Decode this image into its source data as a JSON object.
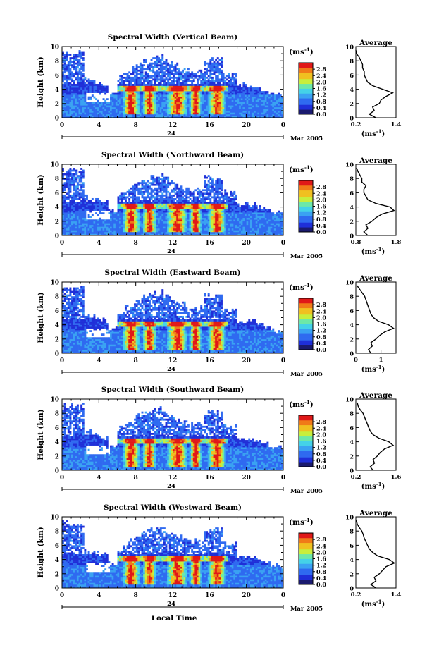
{
  "figure": {
    "xlabel": "Local Time",
    "date_label": "Mar 2005",
    "day_label": "24",
    "ylabel": "Height (km)",
    "cbar_unit": "(ms",
    "cbar_unit_sup": "-1",
    "cbar_unit_tail": ")",
    "avg_title": "Average",
    "colormap": [
      "#1a1a6e",
      "#1f2fd8",
      "#2f6af0",
      "#3aa2f2",
      "#44d2e8",
      "#6de8a8",
      "#c8ee3c",
      "#f0c020",
      "#f07a18",
      "#e01818"
    ]
  },
  "chart_data": [
    {
      "type": "heatmap",
      "title": "Spectral Width (Vertical Beam)",
      "ylabel": "Height (km)",
      "ylim": [
        0,
        10
      ],
      "yticks": [
        "0",
        "2",
        "4",
        "6",
        "8",
        "10"
      ],
      "xlim": [
        0,
        24
      ],
      "xticks": [
        "0",
        "4",
        "8",
        "12",
        "16",
        "20",
        "0"
      ],
      "colorbar": {
        "ticks": [
          "0.0",
          "0.4",
          "0.8",
          "1.2",
          "1.6",
          "2.0",
          "2.4",
          "2.8"
        ],
        "range": [
          0,
          3.2
        ]
      },
      "average": {
        "title": "Average",
        "xticks": [
          "0.2",
          "1.4"
        ],
        "xlim": [
          0.2,
          1.4
        ],
        "ylim": [
          0,
          10
        ],
        "yticks": [
          "0",
          "2",
          "4",
          "6",
          "8",
          "10"
        ],
        "profile": [
          [
            0.8,
            0.0
          ],
          [
            0.6,
            0.5
          ],
          [
            0.75,
            1.0
          ],
          [
            0.7,
            1.5
          ],
          [
            0.9,
            2.0
          ],
          [
            0.95,
            2.5
          ],
          [
            1.1,
            3.0
          ],
          [
            1.3,
            3.5
          ],
          [
            1.0,
            4.0
          ],
          [
            0.7,
            4.5
          ],
          [
            0.55,
            5.0
          ],
          [
            0.5,
            5.5
          ],
          [
            0.45,
            6.0
          ],
          [
            0.45,
            6.5
          ],
          [
            0.4,
            7.0
          ],
          [
            0.4,
            7.5
          ],
          [
            0.35,
            8.0
          ],
          [
            0.3,
            8.5
          ],
          [
            0.22,
            9.0
          ],
          [
            0.2,
            9.5
          ]
        ]
      }
    },
    {
      "type": "heatmap",
      "title": "Spectral Width (Northward Beam)",
      "ylabel": "Height (km)",
      "ylim": [
        0,
        10
      ],
      "yticks": [
        "0",
        "2",
        "4",
        "6",
        "8",
        "10"
      ],
      "xlim": [
        0,
        24
      ],
      "xticks": [
        "0",
        "4",
        "8",
        "12",
        "16",
        "20",
        "0"
      ],
      "colorbar": {
        "ticks": [
          "0.0",
          "0.4",
          "0.8",
          "1.2",
          "1.6",
          "2.0",
          "2.4",
          "2.8"
        ],
        "range": [
          0,
          3.2
        ]
      },
      "average": {
        "title": "Average",
        "xticks": [
          "0.8",
          "1.8"
        ],
        "xlim": [
          0.8,
          1.8
        ],
        "ylim": [
          0,
          10
        ],
        "yticks": [
          "0",
          "2",
          "4",
          "6",
          "8",
          "10"
        ],
        "profile": [
          [
            1.1,
            0.0
          ],
          [
            1.0,
            0.5
          ],
          [
            1.1,
            1.0
          ],
          [
            1.05,
            1.5
          ],
          [
            1.2,
            2.0
          ],
          [
            1.3,
            2.5
          ],
          [
            1.45,
            3.0
          ],
          [
            1.75,
            3.5
          ],
          [
            1.65,
            4.0
          ],
          [
            1.3,
            4.5
          ],
          [
            1.1,
            5.0
          ],
          [
            1.05,
            5.5
          ],
          [
            1.0,
            6.0
          ],
          [
            1.0,
            6.5
          ],
          [
            1.05,
            7.0
          ],
          [
            0.95,
            7.5
          ],
          [
            0.95,
            8.0
          ],
          [
            0.9,
            8.5
          ],
          [
            0.85,
            9.0
          ],
          [
            0.82,
            9.5
          ]
        ]
      }
    },
    {
      "type": "heatmap",
      "title": "Spectral Width (Eastward Beam)",
      "ylabel": "Height (km)",
      "ylim": [
        0,
        10
      ],
      "yticks": [
        "0",
        "2",
        "4",
        "6",
        "8",
        "10"
      ],
      "xlim": [
        0,
        24
      ],
      "xticks": [
        "0",
        "4",
        "8",
        "12",
        "16",
        "20",
        "0"
      ],
      "colorbar": {
        "ticks": [
          "0.0",
          "0.4",
          "0.8",
          "1.2",
          "1.6",
          "2.0",
          "2.4",
          "2.8"
        ],
        "range": [
          0,
          3.2
        ]
      },
      "average": {
        "title": "Average",
        "xticks": [
          "0",
          "1"
        ],
        "xlim": [
          0,
          1.6
        ],
        "ylim": [
          0,
          10
        ],
        "yticks": [
          "0",
          "2",
          "4",
          "6",
          "8",
          "10"
        ],
        "profile": [
          [
            0.6,
            0.0
          ],
          [
            0.5,
            0.5
          ],
          [
            0.65,
            1.0
          ],
          [
            0.6,
            1.5
          ],
          [
            0.8,
            2.0
          ],
          [
            0.95,
            2.5
          ],
          [
            1.15,
            3.0
          ],
          [
            1.5,
            3.5
          ],
          [
            1.3,
            4.0
          ],
          [
            0.9,
            4.5
          ],
          [
            0.7,
            5.0
          ],
          [
            0.6,
            5.5
          ],
          [
            0.55,
            6.0
          ],
          [
            0.5,
            6.5
          ],
          [
            0.45,
            7.0
          ],
          [
            0.4,
            7.5
          ],
          [
            0.35,
            8.0
          ],
          [
            0.25,
            8.5
          ],
          [
            0.15,
            9.0
          ],
          [
            0.05,
            9.5
          ]
        ]
      }
    },
    {
      "type": "heatmap",
      "title": "Spectral Width (Southward Beam)",
      "ylabel": "Height (km)",
      "ylim": [
        0,
        10
      ],
      "yticks": [
        "0",
        "2",
        "4",
        "6",
        "8",
        "10"
      ],
      "xlim": [
        0,
        24
      ],
      "xticks": [
        "0",
        "4",
        "8",
        "12",
        "16",
        "20",
        "0"
      ],
      "colorbar": {
        "ticks": [
          "0.0",
          "0.4",
          "0.8",
          "1.2",
          "1.6",
          "2.0",
          "2.4",
          "2.8"
        ],
        "range": [
          0,
          3.2
        ]
      },
      "average": {
        "title": "Average",
        "xticks": [
          "0.2",
          "1.6"
        ],
        "xlim": [
          0.2,
          1.6
        ],
        "ylim": [
          0,
          10
        ],
        "yticks": [
          "0",
          "2",
          "4",
          "6",
          "8",
          "10"
        ],
        "profile": [
          [
            0.8,
            0.0
          ],
          [
            0.7,
            0.5
          ],
          [
            0.85,
            1.0
          ],
          [
            0.8,
            1.5
          ],
          [
            0.95,
            2.0
          ],
          [
            1.05,
            2.5
          ],
          [
            1.2,
            3.0
          ],
          [
            1.5,
            3.5
          ],
          [
            1.35,
            4.0
          ],
          [
            1.0,
            4.5
          ],
          [
            0.8,
            5.0
          ],
          [
            0.7,
            5.5
          ],
          [
            0.65,
            6.0
          ],
          [
            0.6,
            6.5
          ],
          [
            0.55,
            7.0
          ],
          [
            0.5,
            7.5
          ],
          [
            0.45,
            8.0
          ],
          [
            0.35,
            8.5
          ],
          [
            0.28,
            9.0
          ],
          [
            0.25,
            9.5
          ]
        ]
      }
    },
    {
      "type": "heatmap",
      "title": "Spectral Width (Westward Beam)",
      "ylabel": "Height (km)",
      "ylim": [
        0,
        10
      ],
      "yticks": [
        "0",
        "2",
        "4",
        "6",
        "8",
        "10"
      ],
      "xlim": [
        0,
        24
      ],
      "xticks": [
        "0",
        "4",
        "8",
        "12",
        "16",
        "20",
        "0"
      ],
      "colorbar": {
        "ticks": [
          "0.0",
          "0.4",
          "0.8",
          "1.2",
          "1.6",
          "2.0",
          "2.4",
          "2.8"
        ],
        "range": [
          0,
          3.2
        ]
      },
      "average": {
        "title": "Average",
        "xticks": [
          "0.2",
          "1.4"
        ],
        "xlim": [
          0.2,
          1.4
        ],
        "ylim": [
          0,
          10
        ],
        "yticks": [
          "0",
          "2",
          "4",
          "6",
          "8",
          "10"
        ],
        "profile": [
          [
            0.8,
            0.0
          ],
          [
            0.65,
            0.5
          ],
          [
            0.8,
            1.0
          ],
          [
            0.75,
            1.5
          ],
          [
            0.9,
            2.0
          ],
          [
            1.0,
            2.5
          ],
          [
            1.1,
            3.0
          ],
          [
            1.35,
            3.5
          ],
          [
            1.2,
            4.0
          ],
          [
            0.85,
            4.5
          ],
          [
            0.7,
            5.0
          ],
          [
            0.6,
            5.5
          ],
          [
            0.55,
            6.0
          ],
          [
            0.5,
            6.5
          ],
          [
            0.45,
            7.0
          ],
          [
            0.42,
            7.5
          ],
          [
            0.38,
            8.0
          ],
          [
            0.3,
            8.5
          ],
          [
            0.24,
            9.0
          ],
          [
            0.22,
            9.5
          ]
        ]
      }
    }
  ]
}
